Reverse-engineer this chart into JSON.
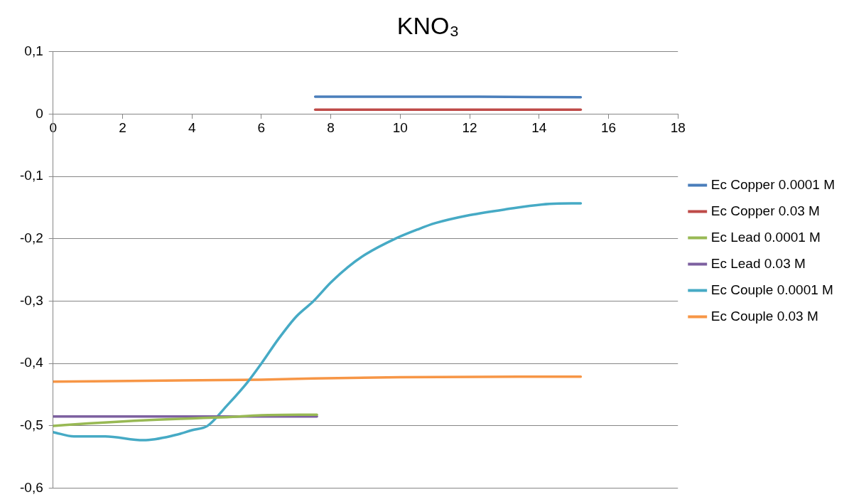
{
  "chart_data": {
    "type": "line",
    "title": "KNO₃",
    "xlim": [
      0,
      18
    ],
    "xticks": [
      0,
      2,
      4,
      6,
      8,
      10,
      12,
      14,
      16,
      18
    ],
    "ylim": [
      -0.6,
      0.1
    ],
    "yticks": [
      {
        "value": -0.6,
        "label": "-0,6"
      },
      {
        "value": -0.5,
        "label": "-0,5"
      },
      {
        "value": -0.4,
        "label": "-0,4"
      },
      {
        "value": -0.3,
        "label": "-0,3"
      },
      {
        "value": -0.2,
        "label": "-0,2"
      },
      {
        "value": -0.1,
        "label": "-0,1"
      },
      {
        "value": 0,
        "label": "0"
      },
      {
        "value": 0.1,
        "label": "0,1"
      }
    ],
    "grid": "y",
    "legend": "right",
    "marker": "none",
    "line_style": "solid",
    "series": [
      {
        "name": "Ec Copper 0.0001 M",
        "color": "#4a7ebb",
        "x": [
          7.55,
          10,
          12,
          15.2
        ],
        "values": [
          0.028,
          0.028,
          0.028,
          0.027
        ]
      },
      {
        "name": "Ec Copper 0.03 M",
        "color": "#be4b48",
        "x": [
          7.55,
          10,
          12,
          15.2
        ],
        "values": [
          0.007,
          0.007,
          0.007,
          0.007
        ]
      },
      {
        "name": "Ec Lead 0.0001 M",
        "color": "#98b954",
        "x": [
          0,
          1,
          2,
          3,
          4,
          5,
          6,
          7.6
        ],
        "values": [
          -0.5,
          -0.496,
          -0.493,
          -0.49,
          -0.488,
          -0.486,
          -0.483,
          -0.482
        ]
      },
      {
        "name": "Ec Lead 0.03 M",
        "color": "#7d60a0",
        "x": [
          0,
          7.6
        ],
        "values": [
          -0.485,
          -0.485
        ]
      },
      {
        "name": "Ec Couple 0.0001 M",
        "color": "#46aac5",
        "x": [
          0,
          0.6,
          1.5,
          2.6,
          3.5,
          4.0,
          4.45,
          5.0,
          5.6,
          6.0,
          6.5,
          7.0,
          7.5,
          8,
          8.5,
          9,
          9.85,
          10.5,
          11,
          12,
          13,
          14.3,
          15.2
        ],
        "values": [
          -0.51,
          -0.517,
          -0.517,
          -0.523,
          -0.515,
          -0.507,
          -0.5,
          -0.468,
          -0.43,
          -0.4,
          -0.36,
          -0.325,
          -0.3,
          -0.27,
          -0.245,
          -0.225,
          -0.2,
          -0.185,
          -0.175,
          -0.162,
          -0.153,
          -0.144,
          -0.143
        ]
      },
      {
        "name": "Ec Couple 0.03 M",
        "color": "#f79646",
        "x": [
          0,
          6,
          7.5,
          10,
          15.2
        ],
        "values": [
          -0.429,
          -0.426,
          -0.424,
          -0.422,
          -0.421
        ]
      }
    ]
  }
}
